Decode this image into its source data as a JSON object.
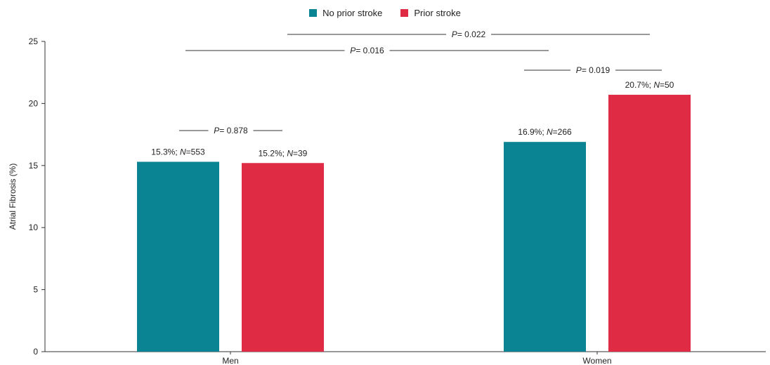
{
  "chart_data": {
    "type": "bar",
    "title": "",
    "xlabel": "",
    "ylabel": "Atrial Fibrosis (%)",
    "ylim": [
      0,
      25
    ],
    "yticks": [
      0,
      5,
      10,
      15,
      20,
      25
    ],
    "categories": [
      "Men",
      "Women"
    ],
    "legend_position": "top-center",
    "series": [
      {
        "name": "No prior stroke",
        "color": "#0a8492",
        "values": [
          15.3,
          16.9
        ],
        "labels": [
          {
            "pct": "15.3%; ",
            "n_letter": "N",
            "n_value": "=553"
          },
          {
            "pct": "16.9%; ",
            "n_letter": "N",
            "n_value": "=266"
          }
        ]
      },
      {
        "name": "Prior stroke",
        "color": "#e02b45",
        "values": [
          15.2,
          20.7
        ],
        "labels": [
          {
            "pct": "15.2%; ",
            "n_letter": "N",
            "n_value": "=39"
          },
          {
            "pct": "20.7%; ",
            "n_letter": "N",
            "n_value": "=50"
          }
        ]
      }
    ],
    "annotations": [
      {
        "letter": "P",
        "value": "= 0.878",
        "from": {
          "category": 0,
          "series": 0
        },
        "to": {
          "category": 0,
          "series": 1
        }
      },
      {
        "letter": "P",
        "value": "= 0.019",
        "from": {
          "category": 1,
          "series": 0
        },
        "to": {
          "category": 1,
          "series": 1
        }
      },
      {
        "letter": "P",
        "value": "= 0.016",
        "from": {
          "category": 0,
          "series": 0
        },
        "to": {
          "category": 1,
          "series": 0
        }
      },
      {
        "letter": "P",
        "value": "= 0.022",
        "from": {
          "category": 0,
          "series": 1
        },
        "to": {
          "category": 1,
          "series": 1
        }
      }
    ]
  }
}
